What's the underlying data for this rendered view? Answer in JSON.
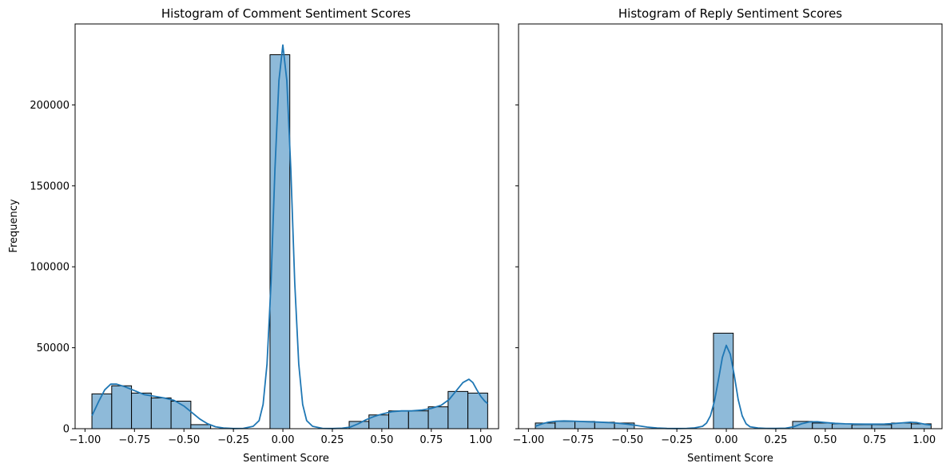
{
  "colors": {
    "bar_fill": "#8ebad9",
    "bar_edge": "#000000",
    "kde_line": "#1f77b4",
    "axes": "#000000",
    "background": "#ffffff"
  },
  "chart_data": [
    {
      "type": "bar",
      "subtype": "histogram-with-kde",
      "title": "Histogram of Comment Sentiment Scores",
      "xlabel": "Sentiment Score",
      "ylabel": "Frequency",
      "xlim": [
        -1.05,
        1.09
      ],
      "ylim": [
        0,
        250000
      ],
      "xticks": [
        -1.0,
        -0.75,
        -0.5,
        -0.25,
        0.0,
        0.25,
        0.5,
        0.75,
        1.0
      ],
      "xtick_labels": [
        "−1.00",
        "−0.75",
        "−0.50",
        "−0.25",
        "0.00",
        "0.25",
        "0.50",
        "0.75",
        "1.00"
      ],
      "yticks": [
        0,
        50000,
        100000,
        150000,
        200000
      ],
      "ytick_labels": [
        "0",
        "50000",
        "100000",
        "150000",
        "200000"
      ],
      "grid": false,
      "bin_edges": [
        -0.965,
        -0.865,
        -0.765,
        -0.665,
        -0.565,
        -0.465,
        -0.365,
        -0.265,
        -0.165,
        -0.065,
        0.035,
        0.135,
        0.235,
        0.335,
        0.435,
        0.535,
        0.635,
        0.735,
        0.835,
        0.935,
        1.035
      ],
      "counts": [
        21500,
        26500,
        22000,
        19000,
        17000,
        2500,
        0,
        0,
        0,
        231000,
        0,
        0,
        0,
        4500,
        8500,
        11000,
        11000,
        13500,
        23000,
        22000
      ],
      "kde": {
        "x": [
          -0.965,
          -0.93,
          -0.9,
          -0.87,
          -0.84,
          -0.8,
          -0.75,
          -0.7,
          -0.65,
          -0.6,
          -0.55,
          -0.5,
          -0.46,
          -0.42,
          -0.38,
          -0.34,
          -0.3,
          -0.25,
          -0.2,
          -0.15,
          -0.12,
          -0.1,
          -0.08,
          -0.06,
          -0.04,
          -0.02,
          0.0,
          0.02,
          0.04,
          0.06,
          0.08,
          0.1,
          0.12,
          0.15,
          0.2,
          0.25,
          0.3,
          0.34,
          0.38,
          0.42,
          0.46,
          0.5,
          0.55,
          0.6,
          0.65,
          0.7,
          0.75,
          0.8,
          0.84,
          0.88,
          0.91,
          0.94,
          0.96,
          0.98,
          1.0,
          1.02,
          1.035
        ],
        "y": [
          8000,
          17000,
          24000,
          27500,
          27500,
          26000,
          23500,
          21000,
          20000,
          19000,
          17500,
          14000,
          10000,
          6000,
          3000,
          1200,
          400,
          100,
          200,
          1500,
          5000,
          15000,
          40000,
          90000,
          160000,
          215000,
          237000,
          215000,
          160000,
          90000,
          40000,
          15000,
          5000,
          1500,
          200,
          100,
          300,
          1000,
          3000,
          5500,
          7500,
          9000,
          10500,
          11000,
          11000,
          11500,
          12500,
          14500,
          18000,
          24000,
          28500,
          30500,
          28500,
          24000,
          20000,
          17000,
          15500
        ]
      }
    },
    {
      "type": "bar",
      "subtype": "histogram-with-kde",
      "title": "Histogram of Reply Sentiment Scores",
      "xlabel": "Sentiment Score",
      "ylabel": "",
      "xlim": [
        -1.05,
        1.09
      ],
      "ylim": [
        0,
        250000
      ],
      "shared_y": true,
      "xticks": [
        -1.0,
        -0.75,
        -0.5,
        -0.25,
        0.0,
        0.25,
        0.5,
        0.75,
        1.0
      ],
      "xtick_labels": [
        "−1.00",
        "−0.75",
        "−0.50",
        "−0.25",
        "0.00",
        "0.25",
        "0.50",
        "0.75",
        "1.00"
      ],
      "grid": false,
      "bin_edges": [
        -0.965,
        -0.865,
        -0.765,
        -0.665,
        -0.565,
        -0.465,
        -0.365,
        -0.265,
        -0.165,
        -0.065,
        0.035,
        0.135,
        0.235,
        0.335,
        0.435,
        0.535,
        0.635,
        0.735,
        0.835,
        0.935,
        1.035
      ],
      "counts": [
        3500,
        4500,
        4500,
        4000,
        3500,
        0,
        0,
        0,
        0,
        59000,
        0,
        0,
        0,
        4500,
        3500,
        3000,
        2500,
        2500,
        3500,
        3000
      ],
      "kde": {
        "x": [
          -0.965,
          -0.93,
          -0.9,
          -0.86,
          -0.82,
          -0.78,
          -0.74,
          -0.7,
          -0.65,
          -0.6,
          -0.55,
          -0.5,
          -0.45,
          -0.4,
          -0.35,
          -0.3,
          -0.25,
          -0.2,
          -0.16,
          -0.12,
          -0.1,
          -0.08,
          -0.06,
          -0.04,
          -0.02,
          0.0,
          0.02,
          0.04,
          0.06,
          0.08,
          0.1,
          0.12,
          0.16,
          0.2,
          0.25,
          0.3,
          0.34,
          0.38,
          0.42,
          0.46,
          0.5,
          0.55,
          0.6,
          0.65,
          0.7,
          0.75,
          0.8,
          0.85,
          0.9,
          0.93,
          0.96,
          1.0,
          1.035
        ],
        "y": [
          1500,
          3000,
          4000,
          4600,
          4800,
          4700,
          4500,
          4300,
          4100,
          3800,
          3400,
          2800,
          1900,
          1000,
          400,
          150,
          100,
          200,
          500,
          1500,
          3500,
          8000,
          17000,
          30000,
          44000,
          51500,
          46000,
          33000,
          18000,
          8000,
          3000,
          1200,
          400,
          200,
          150,
          300,
          1200,
          3000,
          4200,
          4300,
          3800,
          3300,
          3000,
          2900,
          2800,
          2800,
          2900,
          3200,
          3700,
          4000,
          3800,
          2800,
          2200
        ]
      }
    }
  ]
}
